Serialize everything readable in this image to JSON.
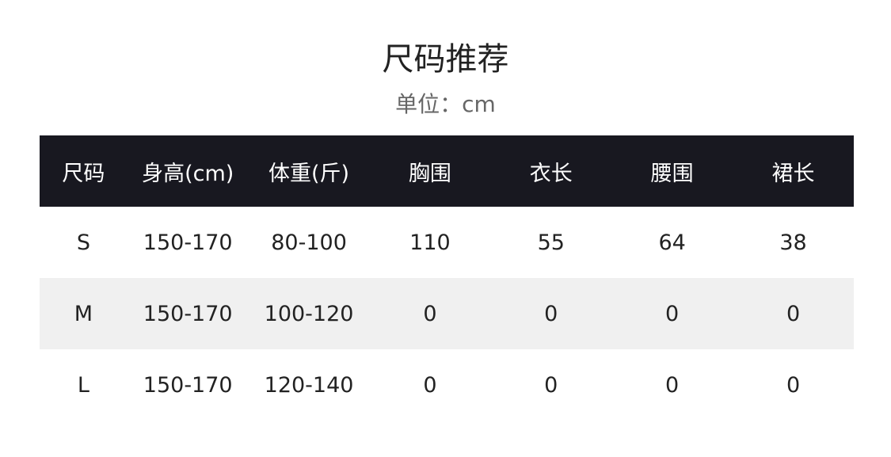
{
  "title": "尺码推荐",
  "unit": "单位：cm",
  "headers": [
    "尺码",
    "身高(cm)",
    "体重(斤)",
    "胸围",
    "衣长",
    "腰围",
    "裙长"
  ],
  "rows": [
    [
      "S",
      "150-170",
      "80-100",
      "110",
      "55",
      "64",
      "38"
    ],
    [
      "M",
      "150-170",
      "100-120",
      "0",
      "0",
      "0",
      "0"
    ],
    [
      "L",
      "150-170",
      "120-140",
      "0",
      "0",
      "0",
      "0"
    ]
  ]
}
